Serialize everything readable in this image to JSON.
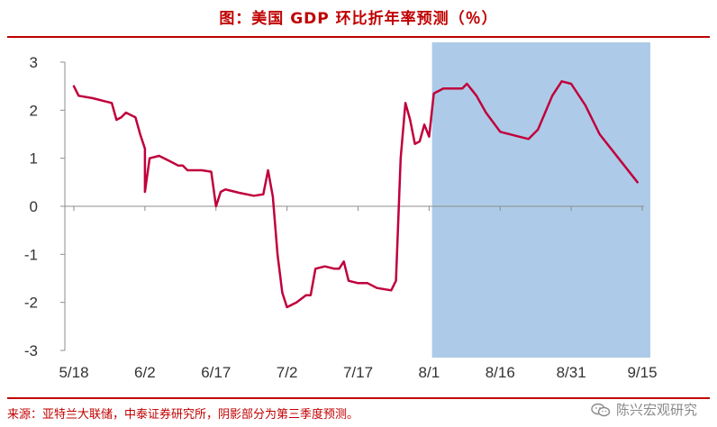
{
  "title": "图：美国 GDP 环比折年率预测（％）",
  "source": "来源：亚特兰大联储，中泰证券研究所，阴影部分为第三季度预测。",
  "watermark": "陈兴宏观研究",
  "watermark_icon": "wechat-icon",
  "chart_data": {
    "type": "line",
    "title": "美国 GDP 环比折年率预测（％）",
    "xlabel": "",
    "ylabel": "",
    "ylim": [
      -3,
      3
    ],
    "yticks": [
      "3",
      "2",
      "1",
      "0",
      "-1",
      "-2",
      "-3"
    ],
    "xticks": [
      "5/18",
      "6/2",
      "6/17",
      "7/2",
      "7/17",
      "8/1",
      "8/16",
      "8/31",
      "9/15"
    ],
    "grid": false,
    "legend": "none",
    "line_color": "#c0003c",
    "shade_color": "#adcbe8",
    "shaded_range": [
      "8/2",
      "9/15"
    ],
    "series": [
      {
        "values": [
          [
            "5/18",
            2.5
          ],
          [
            "5/19",
            2.3
          ],
          [
            "5/22",
            2.25
          ],
          [
            "5/24",
            2.2
          ],
          [
            "5/26",
            2.15
          ],
          [
            "5/27",
            1.8
          ],
          [
            "5/28",
            1.85
          ],
          [
            "5/29",
            1.95
          ],
          [
            "5/31",
            1.85
          ],
          [
            "6/1",
            1.5
          ],
          [
            "6/2",
            1.2
          ],
          [
            "6/2",
            0.3
          ],
          [
            "6/3",
            1.0
          ],
          [
            "6/5",
            1.05
          ],
          [
            "6/7",
            0.95
          ],
          [
            "6/9",
            0.85
          ],
          [
            "6/10",
            0.85
          ],
          [
            "6/11",
            0.75
          ],
          [
            "6/14",
            0.75
          ],
          [
            "6/16",
            0.72
          ],
          [
            "6/17",
            0.0
          ],
          [
            "6/18",
            0.3
          ],
          [
            "6/19",
            0.35
          ],
          [
            "6/22",
            0.28
          ],
          [
            "6/25",
            0.22
          ],
          [
            "6/27",
            0.25
          ],
          [
            "6/28",
            0.75
          ],
          [
            "6/29",
            0.2
          ],
          [
            "6/30",
            -1.0
          ],
          [
            "7/1",
            -1.8
          ],
          [
            "7/2",
            -2.1
          ],
          [
            "7/4",
            -2.0
          ],
          [
            "7/6",
            -1.85
          ],
          [
            "7/7",
            -1.85
          ],
          [
            "7/8",
            -1.3
          ],
          [
            "7/10",
            -1.25
          ],
          [
            "7/12",
            -1.3
          ],
          [
            "7/13",
            -1.3
          ],
          [
            "7/14",
            -1.15
          ],
          [
            "7/15",
            -1.55
          ],
          [
            "7/17",
            -1.6
          ],
          [
            "7/19",
            -1.6
          ],
          [
            "7/21",
            -1.7
          ],
          [
            "7/24",
            -1.75
          ],
          [
            "7/25",
            -1.55
          ],
          [
            "7/26",
            1.0
          ],
          [
            "7/27",
            2.15
          ],
          [
            "7/28",
            1.8
          ],
          [
            "7/29",
            1.3
          ],
          [
            "7/30",
            1.35
          ],
          [
            "7/31",
            1.7
          ],
          [
            "8/1",
            1.45
          ],
          [
            "8/2",
            2.35
          ],
          [
            "8/4",
            2.45
          ],
          [
            "8/7",
            2.45
          ],
          [
            "8/8",
            2.45
          ],
          [
            "8/9",
            2.55
          ],
          [
            "8/11",
            2.3
          ],
          [
            "8/13",
            1.95
          ],
          [
            "8/16",
            1.55
          ],
          [
            "8/20",
            1.45
          ],
          [
            "8/22",
            1.4
          ],
          [
            "8/24",
            1.6
          ],
          [
            "8/27",
            2.3
          ],
          [
            "8/29",
            2.6
          ],
          [
            "8/31",
            2.55
          ],
          [
            "9/3",
            2.1
          ],
          [
            "9/6",
            1.5
          ],
          [
            "9/10",
            1.0
          ],
          [
            "9/14",
            0.5
          ]
        ]
      }
    ]
  }
}
